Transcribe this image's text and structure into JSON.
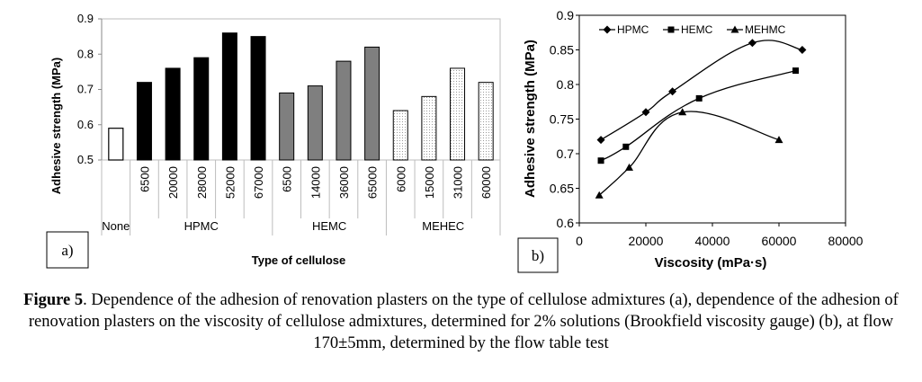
{
  "chart_data": [
    {
      "type": "bar",
      "panel_label": "a)",
      "xlabel": "Type of cellulose",
      "ylabel": "Adhesive strength (MPa)",
      "ylim": [
        0.5,
        0.9
      ],
      "yticks": [
        "0.5",
        "0.6",
        "0.7",
        "0.8",
        "0.9"
      ],
      "groups": [
        {
          "name": "None",
          "style": "white",
          "bars": [
            {
              "label": "",
              "value": 0.59
            }
          ]
        },
        {
          "name": "HPMC",
          "style": "black",
          "bars": [
            {
              "label": "6500",
              "value": 0.72
            },
            {
              "label": "20000",
              "value": 0.76
            },
            {
              "label": "28000",
              "value": 0.79
            },
            {
              "label": "52000",
              "value": 0.86
            },
            {
              "label": "67000",
              "value": 0.85
            }
          ]
        },
        {
          "name": "HEMC",
          "style": "gray",
          "bars": [
            {
              "label": "6500",
              "value": 0.69
            },
            {
              "label": "14000",
              "value": 0.71
            },
            {
              "label": "36000",
              "value": 0.78
            },
            {
              "label": "65000",
              "value": 0.82
            }
          ]
        },
        {
          "name": "MEHEC",
          "style": "dotted",
          "bars": [
            {
              "label": "6000",
              "value": 0.64
            },
            {
              "label": "15000",
              "value": 0.68
            },
            {
              "label": "31000",
              "value": 0.76
            },
            {
              "label": "60000",
              "value": 0.72
            }
          ]
        }
      ],
      "grid": false
    },
    {
      "type": "line",
      "panel_label": "b)",
      "xlabel": "Viscosity (mPa·s)",
      "ylabel": "Adhesive strength (MPa)",
      "xlim": [
        0,
        80000
      ],
      "ylim": [
        0.6,
        0.9
      ],
      "xticks": [
        "0",
        "20000",
        "40000",
        "60000",
        "80000"
      ],
      "yticks": [
        "0.6",
        "0.65",
        "0.7",
        "0.75",
        "0.8",
        "0.85",
        "0.9"
      ],
      "legend_position": "top",
      "series": [
        {
          "name": "HPMC",
          "marker": "diamond",
          "x": [
            6500,
            20000,
            28000,
            52000,
            67000
          ],
          "y": [
            0.72,
            0.76,
            0.79,
            0.86,
            0.85
          ]
        },
        {
          "name": "HEMC",
          "marker": "square",
          "x": [
            6500,
            14000,
            36000,
            65000
          ],
          "y": [
            0.69,
            0.71,
            0.78,
            0.82
          ]
        },
        {
          "name": "MEHMC",
          "marker": "triangle",
          "x": [
            6000,
            15000,
            31000,
            60000
          ],
          "y": [
            0.64,
            0.68,
            0.76,
            0.72
          ]
        }
      ],
      "grid": false
    }
  ],
  "caption": {
    "label": "Figure 5",
    "text": ". Dependence of the adhesion of renovation plasters on the type of cellulose admixtures (a), dependence of the adhesion of renovation plasters on the viscosity of cellulose admixtures, determined for 2% solutions (Brookfield viscosity gauge) (b), at flow 170±5mm, determined by the flow table test"
  }
}
